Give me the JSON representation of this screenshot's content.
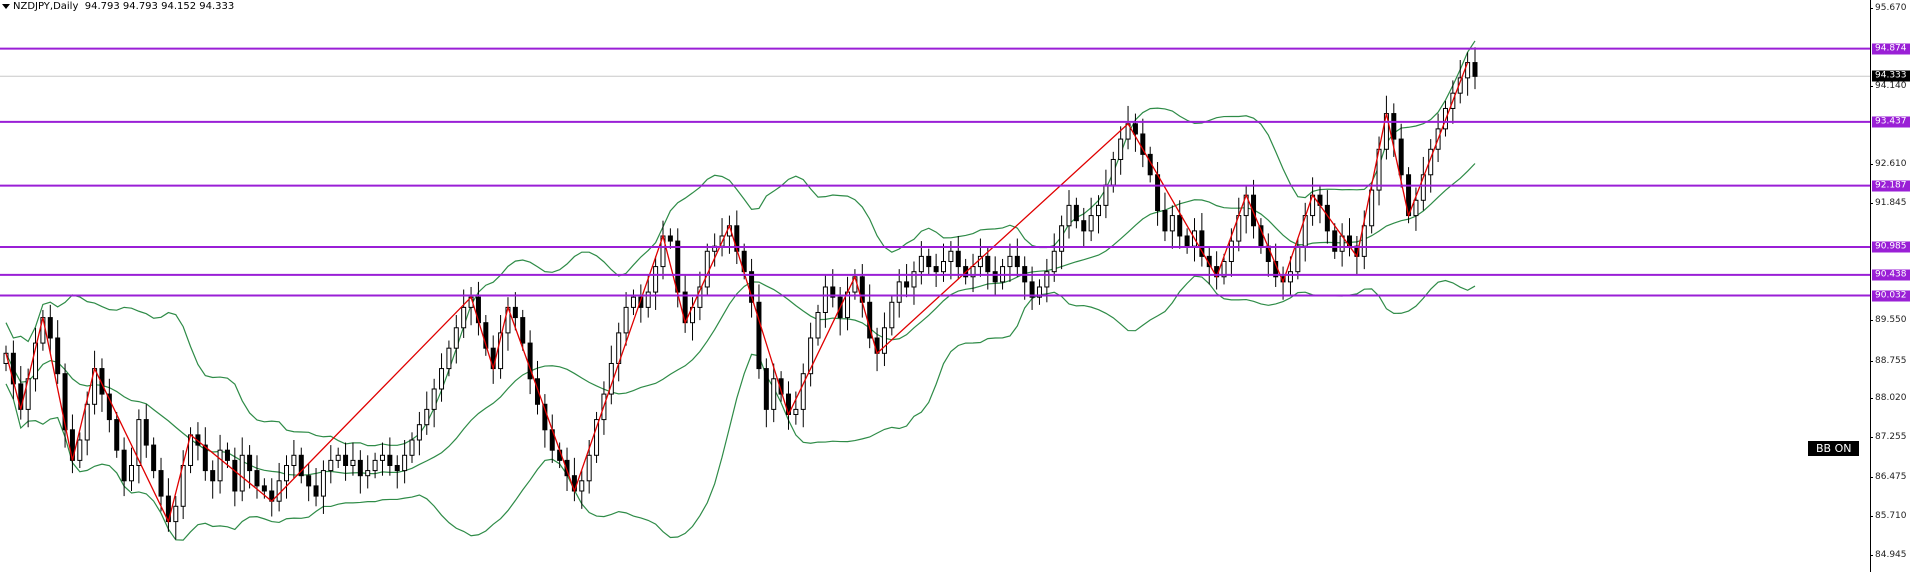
{
  "header": {
    "symbol": "NZDJPY,Daily",
    "ohlc": "94.793 94.793 94.152 94.333"
  },
  "axis": {
    "ticks": [
      "95.670",
      "94.140",
      "92.610",
      "91.845",
      "89.550",
      "88.755",
      "88.020",
      "87.255",
      "86.475",
      "85.710",
      "84.945"
    ],
    "tick_values": [
      95.67,
      94.14,
      92.61,
      91.845,
      89.55,
      88.755,
      88.02,
      87.255,
      86.475,
      85.71,
      84.945
    ],
    "current_price": "94.333"
  },
  "levels": [
    "94.874",
    "93.437",
    "92.187",
    "90.985",
    "90.438",
    "90.032"
  ],
  "level_values": [
    94.874,
    93.437,
    92.187,
    90.985,
    90.438,
    90.032
  ],
  "badge": "BB ON",
  "colors": {
    "level_line": "#9a1fd6",
    "zigzag": "#e00000",
    "bollinger": "#2e8b47",
    "candle": "#000000"
  },
  "chart_data": {
    "type": "candlestick",
    "symbol": "NZDJPY",
    "timeframe": "Daily",
    "ylim": [
      84.6,
      95.8
    ],
    "closes": [
      88.9,
      88.3,
      87.8,
      88.4,
      89.1,
      89.6,
      89.2,
      88.5,
      87.4,
      86.8,
      87.2,
      87.9,
      88.6,
      88.1,
      87.6,
      87.0,
      86.4,
      86.7,
      87.6,
      87.1,
      86.6,
      86.1,
      85.6,
      85.9,
      86.7,
      87.3,
      87.1,
      86.6,
      86.4,
      87.0,
      86.8,
      86.2,
      86.9,
      86.6,
      86.3,
      86.2,
      86.0,
      86.4,
      86.7,
      86.9,
      86.5,
      86.3,
      86.1,
      86.6,
      86.8,
      86.9,
      86.7,
      86.8,
      86.5,
      86.6,
      86.8,
      86.9,
      86.7,
      86.6,
      86.9,
      87.2,
      87.5,
      87.8,
      88.2,
      88.6,
      89.0,
      89.4,
      89.8,
      90.0,
      89.5,
      89.0,
      88.6,
      89.3,
      89.8,
      89.6,
      89.1,
      88.4,
      87.9,
      87.4,
      87.0,
      86.8,
      86.5,
      86.2,
      86.4,
      86.9,
      87.6,
      88.1,
      88.7,
      89.3,
      89.8,
      90.0,
      89.8,
      90.1,
      90.6,
      91.2,
      91.1,
      90.1,
      89.5,
      89.8,
      90.2,
      90.9,
      91.0,
      91.2,
      91.4,
      90.9,
      90.5,
      89.9,
      88.6,
      87.8,
      88.4,
      88.1,
      87.7,
      87.8,
      88.5,
      89.2,
      89.7,
      90.2,
      90.0,
      89.6,
      90.1,
      90.4,
      89.9,
      89.2,
      88.9,
      89.4,
      89.9,
      90.3,
      90.2,
      90.5,
      90.8,
      90.6,
      90.5,
      90.7,
      90.9,
      90.6,
      90.4,
      90.6,
      90.8,
      90.5,
      90.3,
      90.6,
      90.8,
      90.6,
      90.3,
      90.0,
      90.2,
      90.5,
      90.9,
      91.4,
      91.8,
      91.5,
      91.3,
      91.6,
      91.8,
      92.2,
      92.7,
      93.1,
      93.4,
      93.2,
      92.8,
      92.4,
      91.7,
      91.3,
      91.6,
      91.2,
      91.0,
      91.3,
      90.8,
      90.6,
      90.4,
      90.7,
      91.1,
      91.6,
      92.0,
      91.4,
      91.0,
      90.7,
      90.4,
      90.3,
      90.5,
      91.0,
      91.6,
      92.0,
      91.8,
      91.3,
      90.9,
      91.2,
      91.0,
      90.8,
      91.4,
      92.1,
      92.9,
      93.6,
      93.1,
      92.4,
      91.6,
      91.9,
      92.4,
      92.9,
      93.3,
      93.7,
      94.0,
      94.3,
      94.6,
      94.33
    ]
  }
}
